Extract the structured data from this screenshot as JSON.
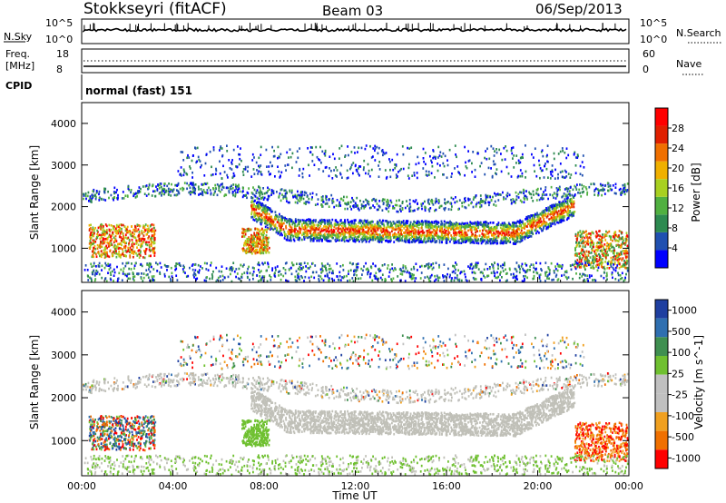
{
  "header": {
    "station": "Stokkseyri (fitACF)",
    "beam": "Beam 03",
    "date": "06/Sep/2013"
  },
  "noise_panel": {
    "left_label": "N.Sky",
    "right_label": "N.Search",
    "left_ticks": [
      "10^5",
      "10^0"
    ],
    "right_ticks": [
      "10^5",
      "10^0"
    ]
  },
  "freq_panel": {
    "left_label_1": "Freq.",
    "left_label_2": "[MHz]",
    "right_label": "Nave",
    "left_ticks": [
      "18",
      "8"
    ],
    "right_ticks": [
      "60",
      "0"
    ]
  },
  "cpid_panel": {
    "label": "CPID",
    "value": "normal (fast) 151"
  },
  "colors": {
    "power_scale": [
      "#0000ff",
      "#2050b0",
      "#2d8a50",
      "#50b040",
      "#a8d020",
      "#f0b000",
      "#f07000",
      "#e02000",
      "#ff0000"
    ],
    "velocity_scale": [
      "#1f3fa0",
      "#2f6fb0",
      "#3f8f50",
      "#6fc030",
      "#c0c0c0",
      "#c0c0c0",
      "#f0a020",
      "#f07000",
      "#ff0000"
    ],
    "ground_scatter": "#c0c0b8"
  },
  "chart_data": [
    {
      "type": "heatmap",
      "name_printed": "",
      "xlabel": "",
      "ylabel": "Slant Range [km]",
      "xlim": [
        "00:00",
        "24:00"
      ],
      "ylim": [
        180,
        4500
      ],
      "y_ticks": [
        "1000",
        "2000",
        "3000",
        "4000"
      ],
      "colorbar_label": "Power [dB]",
      "colorbar_ticks": [
        "4",
        "8",
        "12",
        "16",
        "20",
        "24",
        "28"
      ],
      "colorbar_range": [
        0,
        32
      ],
      "features": [
        {
          "x_range_h": [
            7.6,
            21.6
          ],
          "y_center_km": 1450,
          "note_value_db": 16
        },
        {
          "x_range_h": [
            0.3,
            3.2
          ],
          "y_center_km": 1200,
          "note_value_db": 24
        },
        {
          "x_range_h": [
            21.8,
            24.0
          ],
          "y_center_km": 1000,
          "note_value_db": 24
        }
      ]
    },
    {
      "type": "heatmap",
      "xlabel": "Time UT",
      "ylabel": "Slant Range [km]",
      "xlim": [
        "00:00",
        "24:00"
      ],
      "ylim": [
        180,
        4500
      ],
      "y_ticks": [
        "1000",
        "2000",
        "3000",
        "4000"
      ],
      "x_ticks": [
        "00:00",
        "04:00",
        "08:00",
        "12:00",
        "16:00",
        "20:00",
        "00:00"
      ],
      "colorbar_label": "Velocity [m s^-1]",
      "colorbar_ticks": [
        "1000",
        "500",
        "100",
        "25",
        "-25",
        "-100",
        "-500",
        "-1000"
      ]
    }
  ]
}
